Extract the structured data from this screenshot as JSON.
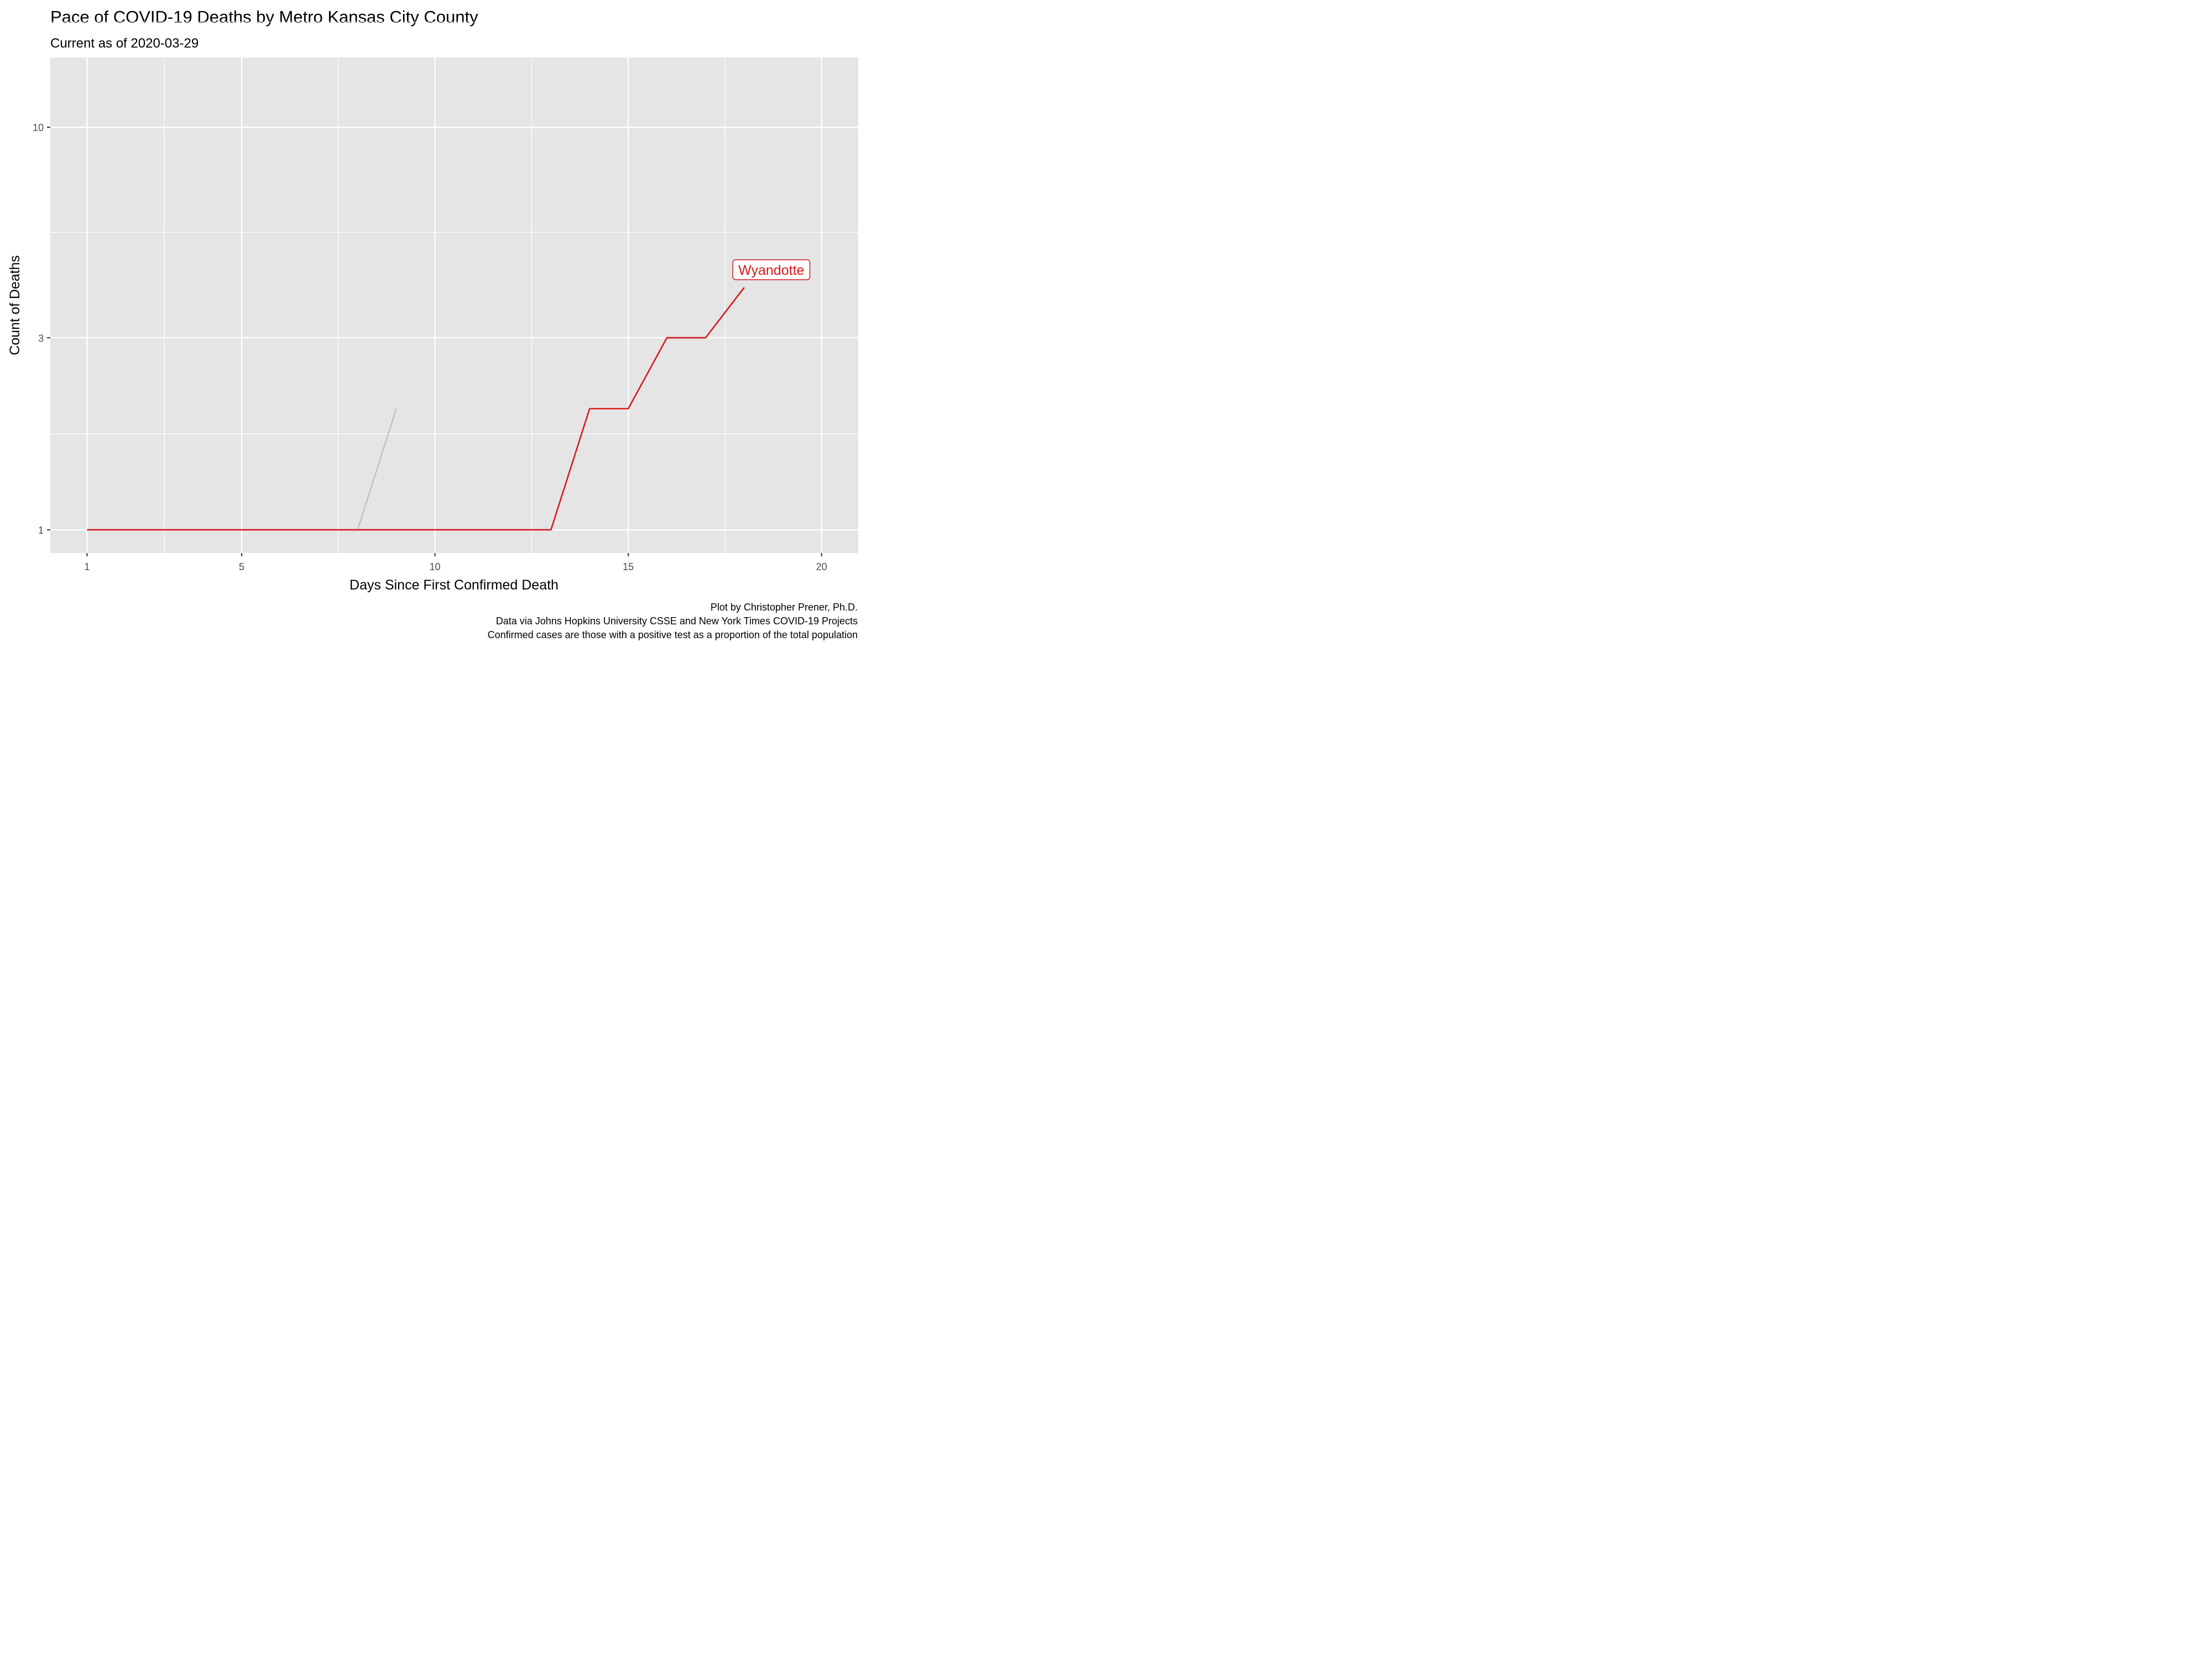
{
  "chart_data": {
    "type": "line",
    "title": "Pace of COVID-19 Deaths by Metro Kansas City County",
    "subtitle": "Current as of 2020-03-29",
    "xlabel": "Days Since First Confirmed Death",
    "ylabel": "Count of Deaths",
    "x_scale": "linear",
    "y_scale": "log",
    "xlim": [
      0.05,
      20.95
    ],
    "ylim": [
      0.876,
      14.9
    ],
    "x_ticks": [
      1,
      5,
      10,
      15,
      20
    ],
    "x_tick_labels": [
      "1",
      "5",
      "10",
      "15",
      "20"
    ],
    "y_ticks": [
      1,
      3,
      10
    ],
    "y_tick_labels": [
      "1",
      "3",
      "10"
    ],
    "grid": true,
    "series": [
      {
        "color": "#bdbdbd",
        "highlight": false,
        "x": [
          1,
          2,
          3,
          4,
          5,
          6,
          7,
          8,
          9
        ],
        "y": [
          1,
          1,
          1,
          1,
          1,
          1,
          1,
          1,
          2
        ]
      },
      {
        "name": "Wyandotte",
        "color": "#d7191c",
        "highlight": true,
        "x": [
          1,
          2,
          3,
          4,
          5,
          6,
          7,
          8,
          9,
          10,
          11,
          12,
          13,
          14,
          15,
          16,
          17,
          18
        ],
        "y": [
          1,
          1,
          1,
          1,
          1,
          1,
          1,
          1,
          1,
          1,
          1,
          1,
          1,
          2,
          2,
          3,
          3,
          4
        ]
      }
    ],
    "annotations": [
      {
        "text": "Wyandotte",
        "series": "Wyandotte",
        "color": "#d7191c"
      }
    ],
    "caption": [
      "Plot by Christopher Prener, Ph.D.",
      "Data via Johns Hopkins University CSSE and New York Times COVID-19 Projects",
      "Confirmed cases are those with a positive test as a proportion of the total population"
    ],
    "colors": {
      "panel_background": "#e5e5e5",
      "grid": "#ffffff",
      "tick_label": "#4d4d4d",
      "tick": "#333333",
      "highlight": "#d7191c",
      "context": "#bdbdbd"
    }
  }
}
